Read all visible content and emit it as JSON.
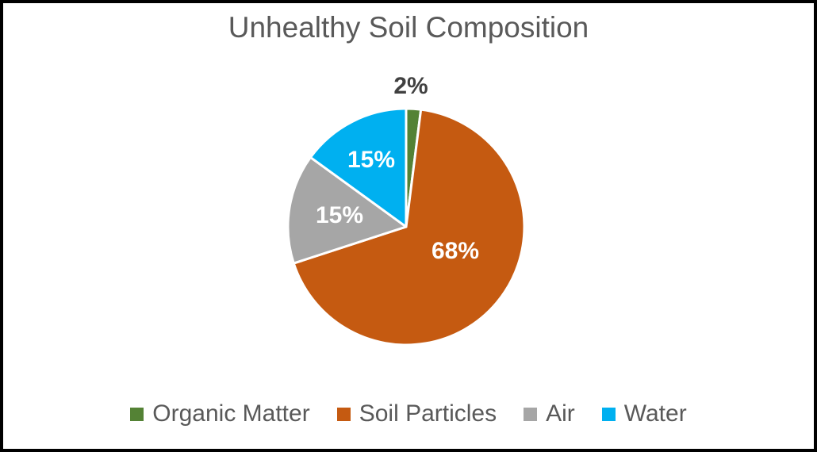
{
  "chart_data": {
    "type": "pie",
    "title": "Unhealthy Soil Composition",
    "categories": [
      "Organic Matter",
      "Soil Particles",
      "Air",
      "Water"
    ],
    "values": [
      2,
      68,
      15,
      15
    ],
    "unit": "%",
    "data_labels": [
      "2%",
      "68%",
      "15%",
      "15%"
    ],
    "colors": [
      "#548235",
      "#C55A11",
      "#A6A6A6",
      "#00B0F0"
    ],
    "start_angle_deg": 0,
    "direction": "clockwise",
    "legend_position": "bottom",
    "slice_separator_color": "#FFFFFF",
    "inside_label_color": "#FFFFFF",
    "outside_label_color": "#404040",
    "title_color": "#595959",
    "legend_text_color": "#595959",
    "background_color": "#FFFFFF",
    "frame_border_color": "#000000"
  }
}
